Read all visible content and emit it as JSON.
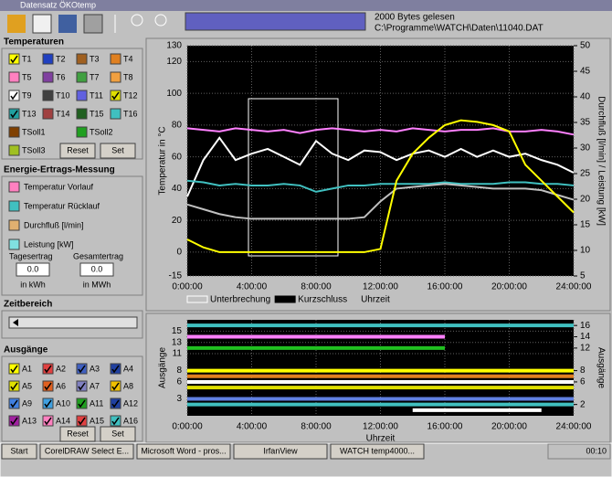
{
  "window": {
    "title": "Datensatz ÖKOtemp"
  },
  "status": {
    "line1": "2000 Bytes gelesen",
    "line2": "C:\\Programme\\WATCH\\Daten\\11040.DAT"
  },
  "temperatures": {
    "title": "Temperaturen",
    "channels": [
      {
        "label": "T1",
        "color": "#ffff00",
        "checked": true
      },
      {
        "label": "T2",
        "color": "#2040c0",
        "checked": false
      },
      {
        "label": "T3",
        "color": "#a06020",
        "checked": false
      },
      {
        "label": "T4",
        "color": "#e08020",
        "checked": false
      },
      {
        "label": "T5",
        "color": "#ff80c0",
        "checked": false
      },
      {
        "label": "T6",
        "color": "#8040a0",
        "checked": false
      },
      {
        "label": "T7",
        "color": "#40a040",
        "checked": false
      },
      {
        "label": "T8",
        "color": "#f0a040",
        "checked": false
      },
      {
        "label": "T9",
        "color": "#ffffff",
        "checked": true
      },
      {
        "label": "T10",
        "color": "#404040",
        "checked": false
      },
      {
        "label": "T11",
        "color": "#6060e0",
        "checked": false
      },
      {
        "label": "T12",
        "color": "#e0e000",
        "checked": true
      },
      {
        "label": "T13",
        "color": "#20a0a0",
        "checked": true
      },
      {
        "label": "T14",
        "color": "#a04040",
        "checked": false
      },
      {
        "label": "T15",
        "color": "#206020",
        "checked": false
      },
      {
        "label": "T16",
        "color": "#40c0c0",
        "checked": false
      },
      {
        "label": "TSoll1",
        "color": "#804000",
        "checked": false
      },
      {
        "label": "TSoll2",
        "color": "#20a020",
        "checked": false
      },
      {
        "label": "TSoll3",
        "color": "#a0c020",
        "checked": false
      }
    ],
    "buttons": [
      "Reset",
      "Set"
    ]
  },
  "energy": {
    "title": "Energie-Ertrags-Messung",
    "items": [
      {
        "label": "Temperatur Vorlauf",
        "color": "#ff80c0"
      },
      {
        "label": "Temperatur Rücklauf",
        "color": "#40c0c0"
      },
      {
        "label": "Durchfluß [l/min]",
        "color": "#e0b070"
      },
      {
        "label": "Leistung [kW]",
        "color": "#80e0e0"
      }
    ],
    "daily": {
      "label": "Tagesertrag",
      "value": "0.0",
      "unit": "in kWh"
    },
    "total": {
      "label": "Gesamtertrag",
      "value": "0.0",
      "unit": "in MWh"
    }
  },
  "time_range": {
    "title": "Zeitbereich"
  },
  "outputs": {
    "title": "Ausgänge",
    "channels": [
      {
        "label": "A1",
        "color": "#ffff00",
        "checked": true
      },
      {
        "label": "A2",
        "color": "#e04040",
        "checked": true
      },
      {
        "label": "A3",
        "color": "#4060c0",
        "checked": true
      },
      {
        "label": "A4",
        "color": "#2040a0",
        "checked": true
      },
      {
        "label": "A5",
        "color": "#e0e000",
        "checked": true
      },
      {
        "label": "A6",
        "color": "#e06020",
        "checked": true
      },
      {
        "label": "A7",
        "color": "#8080c0",
        "checked": true
      },
      {
        "label": "A8",
        "color": "#f0c000",
        "checked": true
      },
      {
        "label": "A9",
        "color": "#4080e0",
        "checked": true
      },
      {
        "label": "A10",
        "color": "#40a0e0",
        "checked": true
      },
      {
        "label": "A11",
        "color": "#20a020",
        "checked": true
      },
      {
        "label": "A12",
        "color": "#2040a0",
        "checked": true
      },
      {
        "label": "A13",
        "color": "#a020a0",
        "checked": true
      },
      {
        "label": "A14",
        "color": "#ff80c0",
        "checked": true
      },
      {
        "label": "A15",
        "color": "#e04040",
        "checked": true
      },
      {
        "label": "A16",
        "color": "#40c0c0",
        "checked": true
      }
    ],
    "buttons": [
      "Reset",
      "Set"
    ]
  },
  "taskbar": {
    "start": "Start",
    "tasks": [
      "CorelDRAW Select E...",
      "Microsoft Word - pros...",
      "IrfanView",
      "WATCH temp4000..."
    ],
    "clock": "00:10"
  },
  "chart_data": [
    {
      "type": "line",
      "ylabel": "Temperatur in °C",
      "y2label": "Durchfluß [l/min] / Leistung [kW]",
      "xlabel": "Uhrzeit",
      "x": [
        0,
        1,
        2,
        3,
        4,
        5,
        6,
        7,
        8,
        9,
        10,
        11,
        12,
        13,
        14,
        15,
        16,
        17,
        18,
        19,
        20,
        21,
        22,
        23,
        24
      ],
      "xlim": [
        0,
        24
      ],
      "xticks": [
        {
          "value": 0,
          "label": "0:00:00"
        },
        {
          "value": 4,
          "label": "4:00:00"
        },
        {
          "value": 8,
          "label": "8:00:00"
        },
        {
          "value": 12,
          "label": "12:00:00"
        },
        {
          "value": 16,
          "label": "16:00:00"
        },
        {
          "value": 20,
          "label": "20:00:00"
        },
        {
          "value": 24,
          "label": "24:00:00"
        }
      ],
      "ylim": [
        -15,
        130
      ],
      "yticks": [
        -15,
        0,
        20,
        40,
        60,
        80,
        100,
        120,
        130
      ],
      "y2lim": [
        5,
        50
      ],
      "y2ticks": [
        5,
        10,
        15,
        20,
        25,
        30,
        35,
        40,
        45,
        50
      ],
      "grid": true,
      "legend": [
        {
          "label": "Unterbrechung",
          "color": "#ffffff",
          "filled": false
        },
        {
          "label": "Kurzschluss",
          "color": "#000000",
          "filled": true
        }
      ],
      "series": [
        {
          "color": "#ff80ff",
          "values": [
            78,
            77,
            76,
            78,
            77,
            76,
            77,
            75,
            77,
            78,
            77,
            76,
            77,
            76,
            78,
            77,
            76,
            77,
            77,
            78,
            76,
            76,
            77,
            76,
            74
          ]
        },
        {
          "color": "#ffffff",
          "values": [
            35,
            58,
            72,
            58,
            62,
            65,
            60,
            55,
            70,
            62,
            58,
            64,
            63,
            58,
            62,
            64,
            60,
            65,
            60,
            64,
            60,
            62,
            58,
            55,
            50
          ]
        },
        {
          "color": "#40c0c0",
          "values": [
            45,
            44,
            42,
            43,
            42,
            42,
            43,
            42,
            38,
            40,
            42,
            42,
            43,
            43,
            43,
            43,
            44,
            43,
            43,
            43,
            44,
            44,
            43,
            43,
            42
          ]
        },
        {
          "color": "#c0c0c0",
          "values": [
            30,
            27,
            24,
            22,
            21,
            21,
            21,
            21,
            21,
            21,
            21,
            22,
            32,
            40,
            41,
            42,
            43,
            42,
            41,
            40,
            40,
            40,
            39,
            36,
            33
          ]
        },
        {
          "color": "#ffff00",
          "values": [
            8,
            3,
            0,
            0,
            0,
            0,
            0,
            0,
            0,
            0,
            0,
            0,
            2,
            45,
            62,
            72,
            80,
            83,
            82,
            80,
            76,
            55,
            45,
            35,
            25
          ]
        }
      ]
    },
    {
      "type": "line",
      "ylabel": "Ausgänge",
      "y2label": "Ausgänge",
      "xlabel": "Uhrzeit",
      "x": [
        0,
        1,
        2,
        3,
        4,
        5,
        6,
        7,
        8,
        9,
        10,
        11,
        12,
        13,
        14,
        15,
        16,
        17,
        18,
        19,
        20,
        21,
        22,
        23,
        24
      ],
      "xlim": [
        0,
        24
      ],
      "xticks": [
        {
          "value": 0,
          "label": "0:00:00"
        },
        {
          "value": 4,
          "label": "4:00:00"
        },
        {
          "value": 8,
          "label": "8:00:00"
        },
        {
          "value": 12,
          "label": "12:00:00"
        },
        {
          "value": 16,
          "label": "16:00:00"
        },
        {
          "value": 20,
          "label": "20:00:00"
        },
        {
          "value": 24,
          "label": "24:00:00"
        }
      ],
      "ylim": [
        0,
        17
      ],
      "yticks": [
        3,
        6,
        8,
        11,
        13,
        15
      ],
      "y2lim": [
        0,
        17
      ],
      "y2ticks": [
        2,
        6,
        8,
        12,
        14,
        16
      ],
      "grid": true,
      "series": [
        {
          "color": "#40c0c0",
          "values": [
            16,
            16,
            16,
            16,
            16,
            16,
            16,
            16,
            16,
            16,
            16,
            16,
            16,
            16,
            16,
            16,
            16,
            16,
            16,
            16,
            16,
            16,
            16,
            16,
            16
          ]
        },
        {
          "color": "#ff80ff",
          "values": [
            14,
            14,
            14,
            14,
            14,
            14,
            14,
            14,
            14,
            14,
            14,
            14,
            14,
            14,
            14,
            14,
            14,
            null,
            null,
            null,
            null,
            null,
            null,
            null,
            null
          ]
        },
        {
          "color": "#20c020",
          "values": [
            12,
            12,
            12,
            12,
            12,
            12,
            12,
            12,
            12,
            12,
            12,
            12,
            12,
            12,
            12,
            12,
            12,
            null,
            null,
            null,
            null,
            null,
            null,
            null,
            null
          ]
        },
        {
          "color": "#ffff00",
          "values": [
            8,
            8,
            8,
            8,
            8,
            8,
            8,
            8,
            8,
            8,
            8,
            8,
            8,
            8,
            8,
            8,
            8,
            8,
            8,
            8,
            8,
            8,
            8,
            8,
            8
          ]
        },
        {
          "color": "#e08020",
          "values": [
            7,
            7,
            7,
            7,
            7,
            7,
            7,
            7,
            7,
            7,
            7,
            7,
            7,
            7,
            7,
            7,
            7,
            7,
            7,
            7,
            7,
            7,
            7,
            7,
            7
          ]
        },
        {
          "color": "#ffffff",
          "values": [
            6,
            6,
            6,
            6,
            6,
            6,
            6,
            6,
            6,
            6,
            6,
            6,
            6,
            6,
            6,
            6,
            6,
            6,
            6,
            6,
            6,
            6,
            6,
            6,
            6
          ]
        },
        {
          "color": "#e0e000",
          "values": [
            5,
            5,
            5,
            5,
            5,
            5,
            5,
            5,
            5,
            5,
            5,
            5,
            5,
            5,
            5,
            5,
            5,
            5,
            5,
            5,
            5,
            5,
            5,
            5,
            5
          ]
        },
        {
          "color": "#6080e0",
          "values": [
            3,
            3,
            3,
            3,
            3,
            3,
            3,
            3,
            3,
            3,
            3,
            3,
            3,
            3,
            3,
            3,
            3,
            3,
            3,
            3,
            3,
            3,
            3,
            3,
            3
          ]
        },
        {
          "color": "#40c0c0",
          "values": [
            2,
            2,
            2,
            2,
            2,
            2,
            2,
            2,
            2,
            2,
            2,
            2,
            2,
            2,
            2,
            2,
            2,
            2,
            2,
            2,
            2,
            2,
            2,
            2,
            2
          ]
        },
        {
          "color": "#ffffff",
          "values": [
            null,
            null,
            null,
            null,
            null,
            null,
            null,
            null,
            null,
            null,
            null,
            null,
            null,
            null,
            1,
            1,
            1,
            1,
            1,
            1,
            1,
            1,
            1,
            null,
            null
          ]
        }
      ]
    }
  ]
}
